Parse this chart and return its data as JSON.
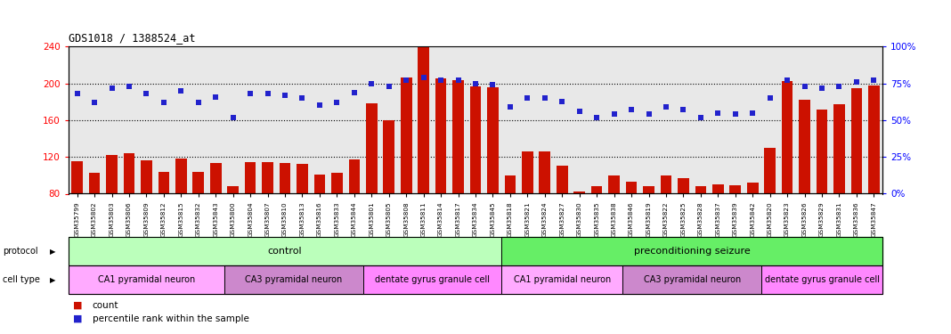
{
  "title": "GDS1018 / 1388524_at",
  "samples": [
    "GSM35799",
    "GSM35802",
    "GSM35803",
    "GSM35806",
    "GSM35809",
    "GSM35812",
    "GSM35815",
    "GSM35832",
    "GSM35843",
    "GSM35800",
    "GSM35804",
    "GSM35807",
    "GSM35810",
    "GSM35813",
    "GSM35816",
    "GSM35833",
    "GSM35844",
    "GSM35801",
    "GSM35805",
    "GSM35808",
    "GSM35811",
    "GSM35814",
    "GSM35817",
    "GSM35834",
    "GSM35845",
    "GSM35818",
    "GSM35821",
    "GSM35824",
    "GSM35827",
    "GSM35830",
    "GSM35835",
    "GSM35838",
    "GSM35846",
    "GSM35819",
    "GSM35822",
    "GSM35825",
    "GSM35828",
    "GSM35837",
    "GSM35839",
    "GSM35842",
    "GSM35820",
    "GSM35823",
    "GSM35826",
    "GSM35829",
    "GSM35831",
    "GSM35836",
    "GSM35847"
  ],
  "counts": [
    115,
    103,
    122,
    124,
    116,
    104,
    118,
    104,
    113,
    88,
    114,
    114,
    113,
    112,
    101,
    103,
    117,
    178,
    160,
    207,
    240,
    206,
    204,
    197,
    196,
    100,
    126,
    126,
    111,
    82,
    88,
    100,
    93,
    88,
    100,
    97,
    88,
    90,
    89,
    92,
    130,
    203,
    182,
    172,
    177,
    195,
    198
  ],
  "percentile": [
    68,
    62,
    72,
    73,
    68,
    62,
    70,
    62,
    66,
    52,
    68,
    68,
    67,
    65,
    60,
    62,
    69,
    75,
    73,
    77,
    79,
    77,
    77,
    75,
    74,
    59,
    65,
    65,
    63,
    56,
    52,
    54,
    57,
    54,
    59,
    57,
    52,
    55,
    54,
    55,
    65,
    77,
    73,
    72,
    73,
    76,
    77
  ],
  "ylim_left": [
    80,
    240
  ],
  "ylim_right": [
    0,
    100
  ],
  "yticks_left": [
    80,
    120,
    160,
    200,
    240
  ],
  "yticks_right": [
    0,
    25,
    50,
    75,
    100
  ],
  "bar_color": "#cc1100",
  "dot_color": "#2222cc",
  "background_color": "#e8e8e8",
  "protocol_groups": [
    {
      "label": "control",
      "start": 0,
      "end": 25,
      "color": "#bbffbb"
    },
    {
      "label": "preconditioning seizure",
      "start": 25,
      "end": 47,
      "color": "#66ee66"
    }
  ],
  "cell_type_groups": [
    {
      "label": "CA1 pyramidal neuron",
      "start": 0,
      "end": 9,
      "color": "#ffaaff"
    },
    {
      "label": "CA3 pyramidal neuron",
      "start": 9,
      "end": 17,
      "color": "#cc88cc"
    },
    {
      "label": "dentate gyrus granule cell",
      "start": 17,
      "end": 25,
      "color": "#ff88ff"
    },
    {
      "label": "CA1 pyramidal neuron",
      "start": 25,
      "end": 32,
      "color": "#ffaaff"
    },
    {
      "label": "CA3 pyramidal neuron",
      "start": 32,
      "end": 40,
      "color": "#cc88cc"
    },
    {
      "label": "dentate gyrus granule cell",
      "start": 40,
      "end": 47,
      "color": "#ff88ff"
    }
  ]
}
